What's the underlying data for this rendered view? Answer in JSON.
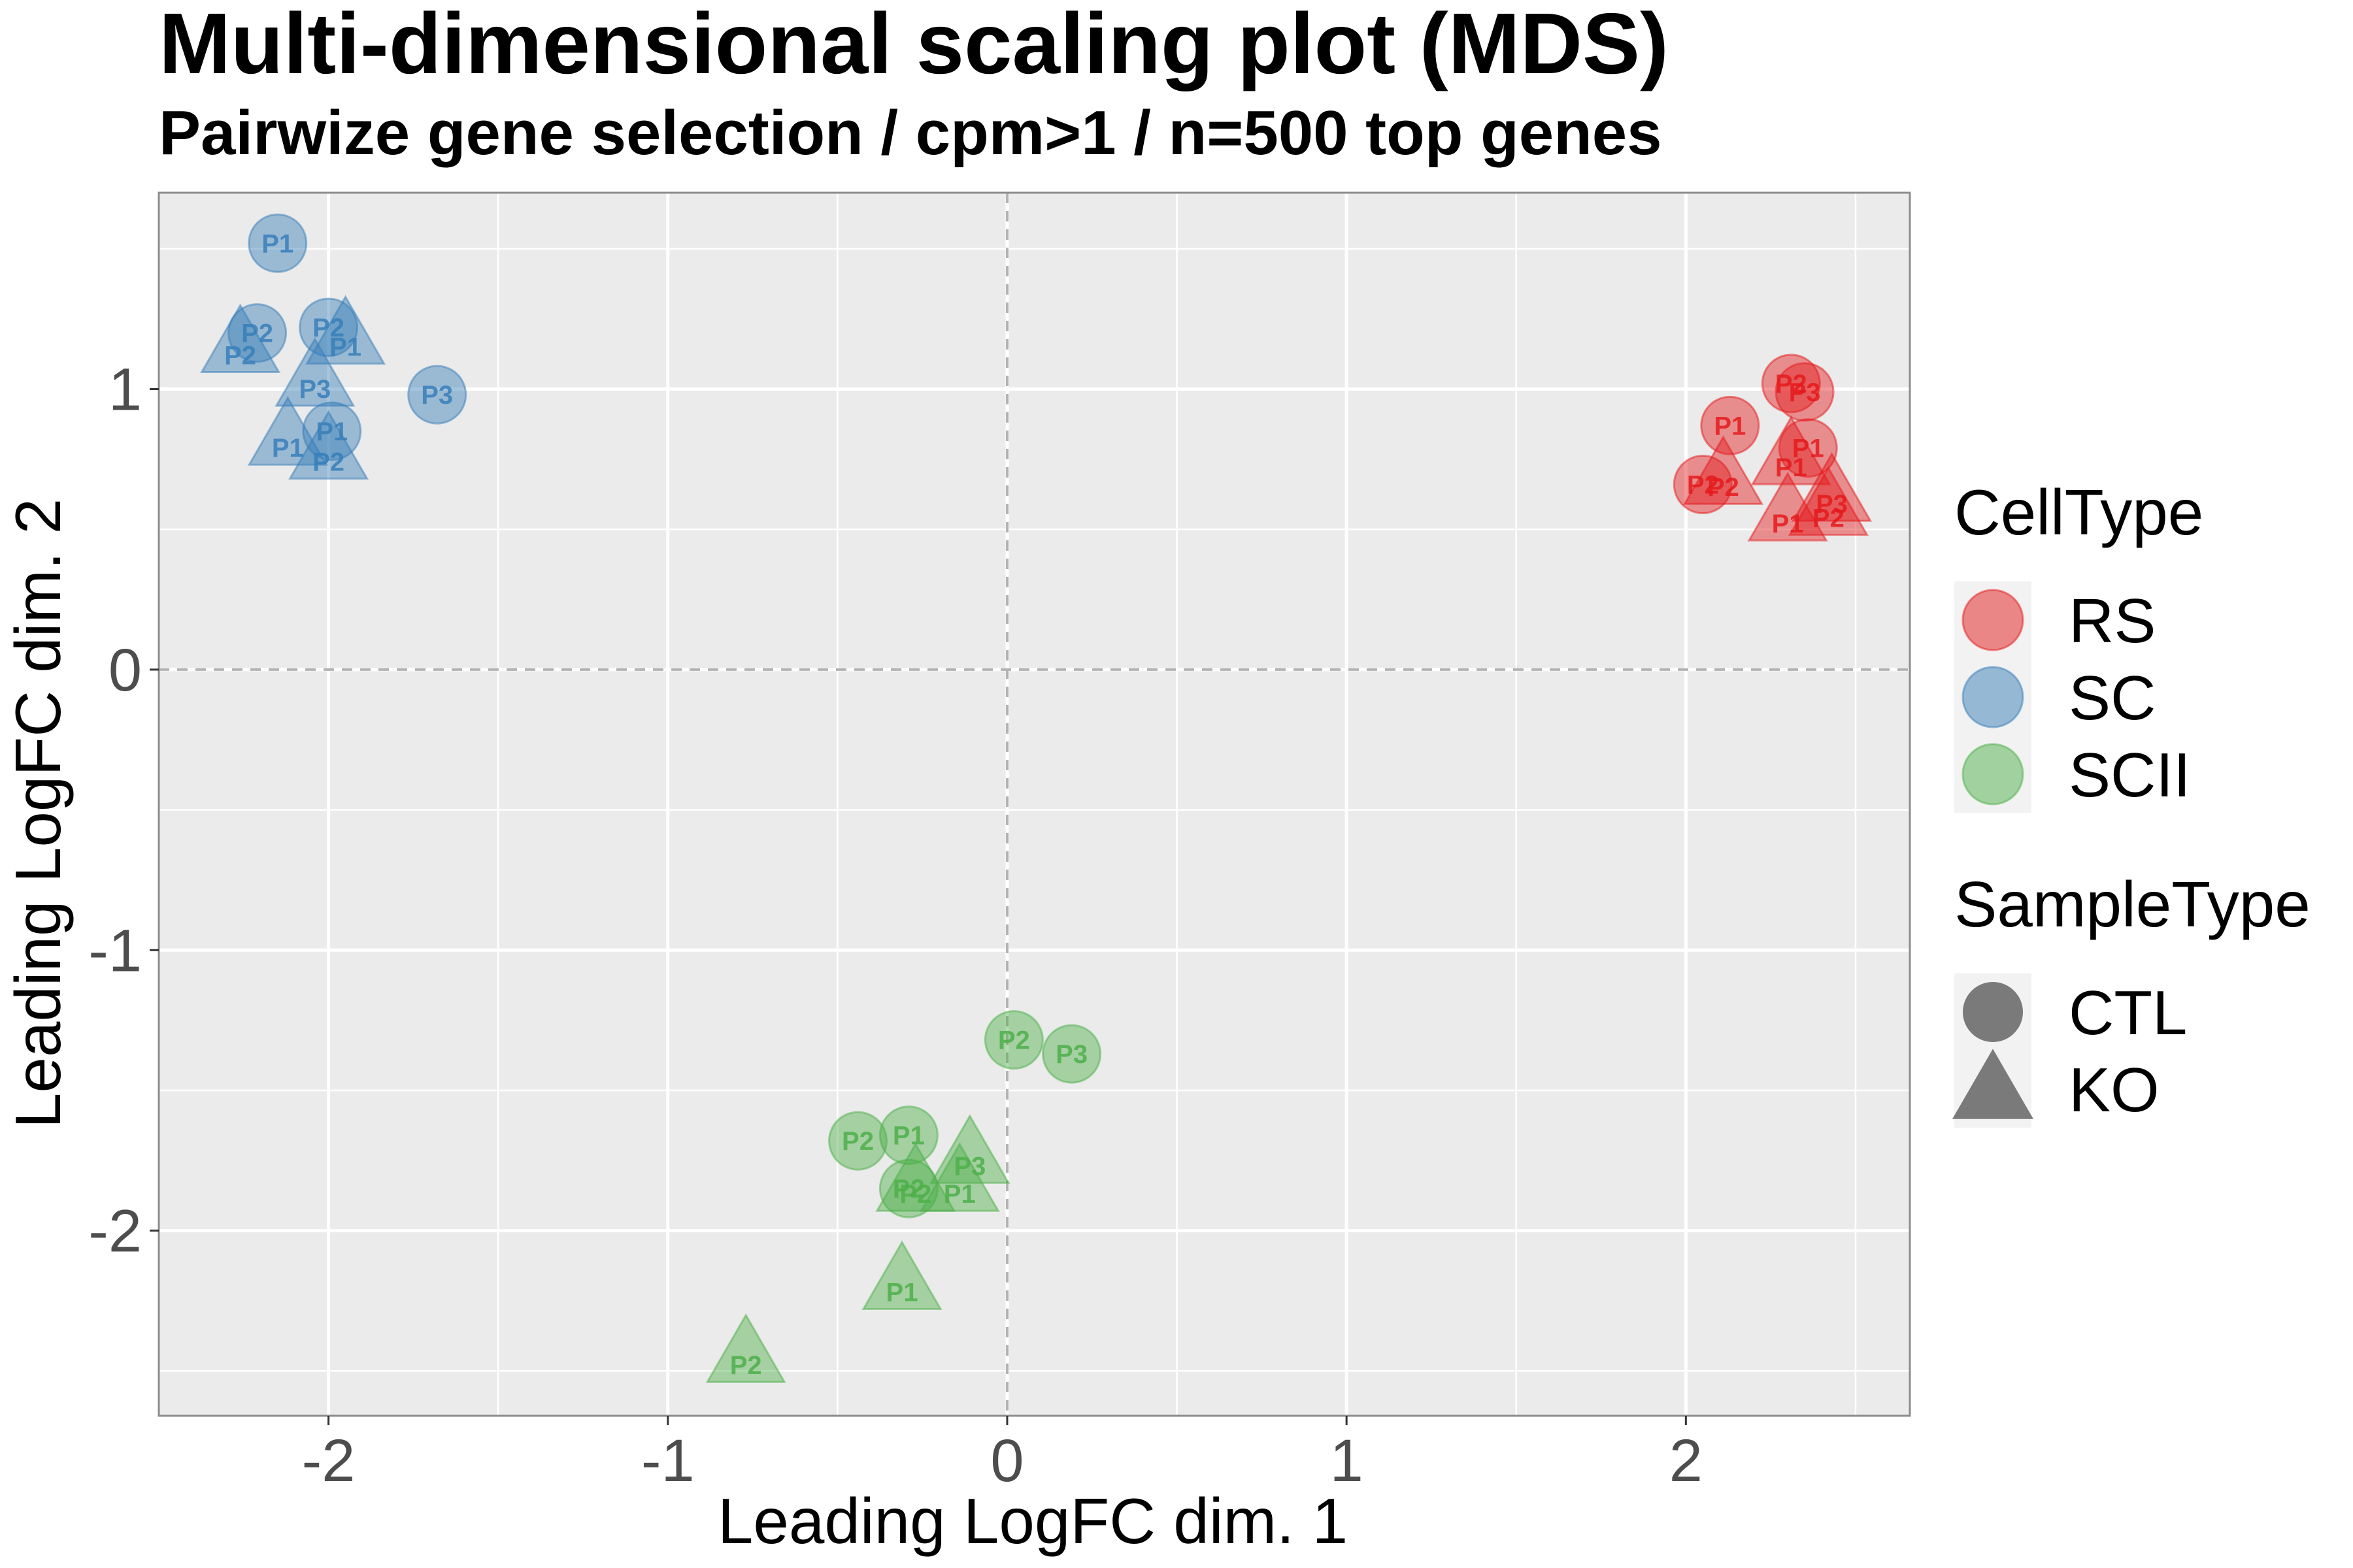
{
  "chart_data": {
    "type": "scatter",
    "title": "Multi-dimensional scaling plot (MDS)",
    "subtitle": "Pairwize gene selection / cpm>1 / n=500 top genes",
    "xlabel": "Leading LogFC dim. 1",
    "ylabel": "Leading LogFC dim. 2",
    "xlim": [
      -2.5,
      2.66
    ],
    "ylim": [
      -2.66,
      1.7
    ],
    "x_ticks": [
      -2,
      -1,
      0,
      1,
      2
    ],
    "y_ticks": [
      1,
      0,
      -1,
      -2
    ],
    "x_tick_labels": [
      "-2",
      "-1",
      "0",
      "1",
      "2"
    ],
    "y_tick_labels": [
      "1",
      "0",
      "-1",
      "-2"
    ],
    "grid": true,
    "reference_lines": {
      "x": 0,
      "y": 0,
      "style": "dashed"
    },
    "legend": {
      "position": "right",
      "color_title": "CellType",
      "shape_title": "SampleType",
      "color_entries": [
        {
          "label": "RS",
          "color": "#e41a1c"
        },
        {
          "label": "SC",
          "color": "#377eb8"
        },
        {
          "label": "SCII",
          "color": "#4daf4a"
        }
      ],
      "shape_entries": [
        {
          "label": "CTL",
          "shape": "circle"
        },
        {
          "label": "KO",
          "shape": "triangle"
        }
      ]
    },
    "series": [
      {
        "group": "SC",
        "shape": "circle",
        "points": [
          {
            "x": -2.15,
            "y": 1.52,
            "label": "P1"
          },
          {
            "x": -2.21,
            "y": 1.2,
            "label": "P2"
          },
          {
            "x": -2.0,
            "y": 1.22,
            "label": "P2"
          },
          {
            "x": -1.68,
            "y": 0.98,
            "label": "P3"
          },
          {
            "x": -1.99,
            "y": 0.85,
            "label": "P1"
          }
        ]
      },
      {
        "group": "SC",
        "shape": "triangle",
        "points": [
          {
            "x": -1.95,
            "y": 1.17,
            "label": "P1"
          },
          {
            "x": -2.26,
            "y": 1.14,
            "label": "P2"
          },
          {
            "x": -2.04,
            "y": 1.02,
            "label": "P3"
          },
          {
            "x": -2.12,
            "y": 0.81,
            "label": "P1"
          },
          {
            "x": -2.0,
            "y": 0.76,
            "label": "P2"
          }
        ]
      },
      {
        "group": "RS",
        "shape": "circle",
        "points": [
          {
            "x": 2.31,
            "y": 1.02,
            "label": "P2"
          },
          {
            "x": 2.35,
            "y": 0.99,
            "label": "P3"
          },
          {
            "x": 2.13,
            "y": 0.87,
            "label": "P1"
          },
          {
            "x": 2.36,
            "y": 0.79,
            "label": "P1"
          },
          {
            "x": 2.05,
            "y": 0.66,
            "label": "P2"
          }
        ]
      },
      {
        "group": "RS",
        "shape": "triangle",
        "points": [
          {
            "x": 2.31,
            "y": 0.74,
            "label": "P1"
          },
          {
            "x": 2.11,
            "y": 0.67,
            "label": "P2"
          },
          {
            "x": 2.43,
            "y": 0.61,
            "label": "P3"
          },
          {
            "x": 2.3,
            "y": 0.54,
            "label": "P1"
          },
          {
            "x": 2.42,
            "y": 0.56,
            "label": "P2"
          }
        ]
      },
      {
        "group": "SCII",
        "shape": "circle",
        "points": [
          {
            "x": 0.02,
            "y": -1.32,
            "label": "P2"
          },
          {
            "x": 0.19,
            "y": -1.37,
            "label": "P3"
          },
          {
            "x": -0.29,
            "y": -1.66,
            "label": "P1"
          },
          {
            "x": -0.44,
            "y": -1.68,
            "label": "P2"
          },
          {
            "x": -0.29,
            "y": -1.85,
            "label": "P2"
          }
        ]
      },
      {
        "group": "SCII",
        "shape": "triangle",
        "points": [
          {
            "x": -0.11,
            "y": -1.75,
            "label": "P3"
          },
          {
            "x": -0.14,
            "y": -1.85,
            "label": "P1"
          },
          {
            "x": -0.27,
            "y": -1.85,
            "label": "P2"
          },
          {
            "x": -0.31,
            "y": -2.2,
            "label": "P1"
          },
          {
            "x": -0.77,
            "y": -2.46,
            "label": "P2"
          }
        ]
      }
    ]
  }
}
